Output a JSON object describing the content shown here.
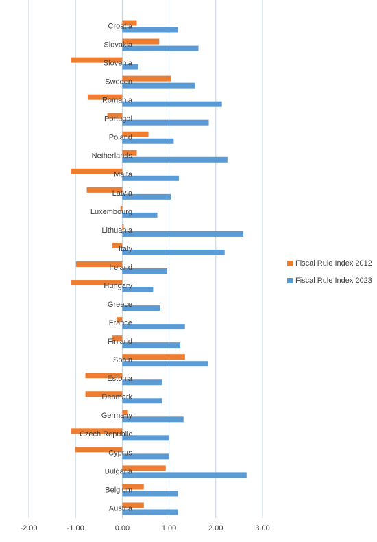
{
  "chart_data": {
    "type": "hbar",
    "categories": [
      "Croatia",
      "Slovakia",
      "Slovenia",
      "Sweden",
      "Romania",
      "Portugal",
      "Poland",
      "Netherlands",
      "Malta",
      "Latvia",
      "Luxembourg",
      "Lithuania",
      "Italy",
      "Ireland",
      "Hungary",
      "Greece",
      "France",
      "Finland",
      "Spain",
      "Estonia",
      "Denmark",
      "Germany",
      "Czech Republic",
      "Cyprus",
      "Bulgaria",
      "Belgium",
      "Austria"
    ],
    "series": [
      {
        "name": "Fiscal Rule Index 2012",
        "color": "#ed7d31",
        "values": [
          0.31,
          0.79,
          -1.09,
          1.04,
          -0.74,
          -0.32,
          0.56,
          0.31,
          -1.09,
          -0.76,
          -0.04,
          0.03,
          -0.21,
          -0.99,
          -1.09,
          0,
          -0.12,
          -0.21,
          1.34,
          -0.79,
          -0.79,
          0.12,
          -1.09,
          -1.01,
          0.93,
          0.46,
          0.46
        ]
      },
      {
        "name": "Fiscal Rule Index 2023",
        "color": "#5b9bd5",
        "values": [
          1.19,
          1.63,
          0.34,
          1.56,
          2.13,
          1.85,
          1.1,
          2.25,
          1.21,
          1.04,
          0.75,
          2.59,
          2.19,
          0.96,
          0.66,
          0.81,
          1.34,
          1.24,
          1.84,
          0.85,
          0.85,
          1.31,
          1.0,
          1.0,
          2.66,
          1.19,
          1.19
        ]
      }
    ],
    "xlim": [
      -2,
      3
    ],
    "xticks": [
      {
        "value": -2,
        "label": "-2.00"
      },
      {
        "value": -1,
        "label": "-1.00"
      },
      {
        "value": 0,
        "label": "0.00"
      },
      {
        "value": 1,
        "label": "1.00"
      },
      {
        "value": 2,
        "label": "2.00"
      },
      {
        "value": 3,
        "label": "3.00"
      }
    ],
    "grid": true,
    "legend": "right"
  }
}
